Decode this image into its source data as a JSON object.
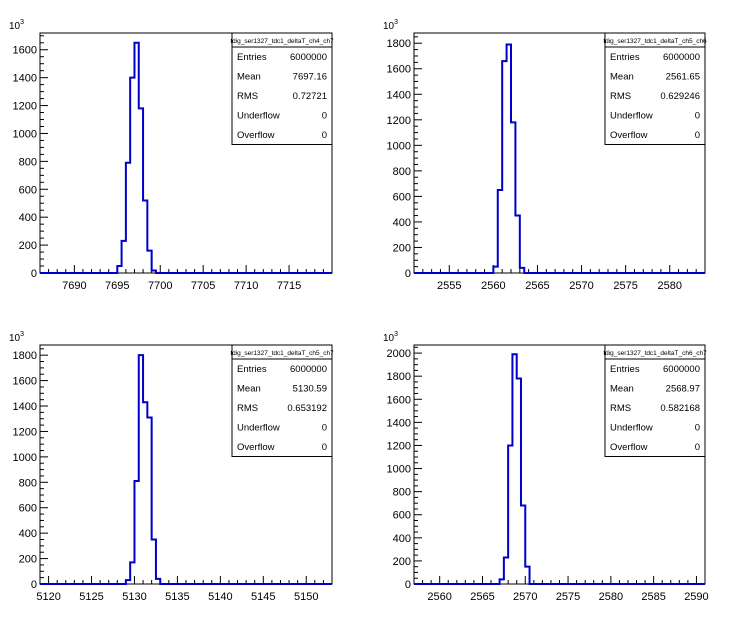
{
  "chart_data": [
    {
      "type": "histogram",
      "stats": {
        "title": "tdig_ser1327_tdc1_deltaT_ch4_ch7",
        "rows": [
          {
            "label": "Entries",
            "value": "6000000"
          },
          {
            "label": "Mean",
            "value": "7697.16"
          },
          {
            "label": "RMS",
            "value": "0.72721"
          },
          {
            "label": "Underflow",
            "value": "0"
          },
          {
            "label": "Overflow",
            "value": "0"
          }
        ]
      },
      "xlim": [
        7686,
        7720
      ],
      "ylim": [
        0,
        1720
      ],
      "y_exponent": "10",
      "y_exponent_power": "3",
      "x_ticks": [
        7690,
        7695,
        7700,
        7705,
        7710,
        7715
      ],
      "y_ticks": [
        0,
        200,
        400,
        600,
        800,
        1000,
        1200,
        1400,
        1600
      ],
      "bin_width": 0.5,
      "bins": [
        [
          7695.0,
          50
        ],
        [
          7695.5,
          230
        ],
        [
          7696.0,
          790
        ],
        [
          7696.5,
          1400
        ],
        [
          7697.0,
          1650
        ],
        [
          7697.5,
          1180
        ],
        [
          7698.0,
          520
        ],
        [
          7698.5,
          160
        ],
        [
          7699.0,
          18
        ],
        [
          7699.5,
          0
        ]
      ]
    },
    {
      "type": "histogram",
      "stats": {
        "title": "tdig_ser1327_tdc1_deltaT_ch5_ch6",
        "rows": [
          {
            "label": "Entries",
            "value": "6000000"
          },
          {
            "label": "Mean",
            "value": "2561.65"
          },
          {
            "label": "RMS",
            "value": "0.629246"
          },
          {
            "label": "Underflow",
            "value": "0"
          },
          {
            "label": "Overflow",
            "value": "0"
          }
        ]
      },
      "xlim": [
        2551,
        2584
      ],
      "ylim": [
        0,
        1880
      ],
      "y_exponent": "10",
      "y_exponent_power": "3",
      "x_ticks": [
        2555,
        2560,
        2565,
        2570,
        2575,
        2580
      ],
      "y_ticks": [
        0,
        200,
        400,
        600,
        800,
        1000,
        1200,
        1400,
        1600,
        1800
      ],
      "bin_width": 0.5,
      "bins": [
        [
          2560.0,
          50
        ],
        [
          2560.5,
          650
        ],
        [
          2561.0,
          1660
        ],
        [
          2561.5,
          1790
        ],
        [
          2562.0,
          1180
        ],
        [
          2562.5,
          450
        ],
        [
          2563.0,
          40
        ],
        [
          2563.5,
          0
        ]
      ]
    },
    {
      "type": "histogram",
      "stats": {
        "title": "tdig_ser1327_tdc1_deltaT_ch5_ch7",
        "rows": [
          {
            "label": "Entries",
            "value": "6000000"
          },
          {
            "label": "Mean",
            "value": "5130.59"
          },
          {
            "label": "RMS",
            "value": "0.653192"
          },
          {
            "label": "Underflow",
            "value": "0"
          },
          {
            "label": "Overflow",
            "value": "0"
          }
        ]
      },
      "xlim": [
        5119,
        5153
      ],
      "ylim": [
        0,
        1880
      ],
      "y_exponent": "10",
      "y_exponent_power": "3",
      "x_ticks": [
        5120,
        5125,
        5130,
        5135,
        5140,
        5145,
        5150
      ],
      "y_ticks": [
        0,
        200,
        400,
        600,
        800,
        1000,
        1200,
        1400,
        1600,
        1800
      ],
      "bin_width": 0.5,
      "bins": [
        [
          5129.0,
          30
        ],
        [
          5129.5,
          170
        ],
        [
          5130.0,
          810
        ],
        [
          5130.5,
          1800
        ],
        [
          5131.0,
          1430
        ],
        [
          5131.5,
          1310
        ],
        [
          5132.0,
          350
        ],
        [
          5132.5,
          40
        ],
        [
          5133.0,
          0
        ]
      ]
    },
    {
      "type": "histogram",
      "stats": {
        "title": "tdig_ser1327_tdc1_deltaT_ch6_ch7",
        "rows": [
          {
            "label": "Entries",
            "value": "6000000"
          },
          {
            "label": "Mean",
            "value": "2568.97"
          },
          {
            "label": "RMS",
            "value": "0.582168"
          },
          {
            "label": "Underflow",
            "value": "0"
          },
          {
            "label": "Overflow",
            "value": "0"
          }
        ]
      },
      "xlim": [
        2557,
        2591
      ],
      "ylim": [
        0,
        2070
      ],
      "y_exponent": "10",
      "y_exponent_power": "3",
      "x_ticks": [
        2560,
        2565,
        2570,
        2575,
        2580,
        2585,
        2590
      ],
      "y_ticks": [
        0,
        200,
        400,
        600,
        800,
        1000,
        1200,
        1400,
        1600,
        1800,
        2000
      ],
      "bin_width": 0.5,
      "bins": [
        [
          2567.0,
          40
        ],
        [
          2567.5,
          230
        ],
        [
          2568.0,
          1200
        ],
        [
          2568.5,
          1990
        ],
        [
          2569.0,
          1780
        ],
        [
          2569.5,
          680
        ],
        [
          2570.0,
          150
        ],
        [
          2570.5,
          0
        ]
      ]
    }
  ]
}
